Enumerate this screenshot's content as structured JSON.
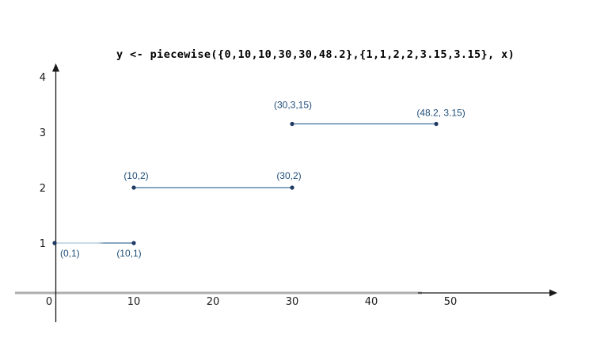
{
  "title": "y <- piecewise({0,10,10,30,30,48.2},{1,1,2,2,3.15,3.15}, x)",
  "chart_data": {
    "type": "line",
    "title": "y <- piecewise({0,10,10,30,30,48.2},{1,1,2,2,3.15,3.15}, x)",
    "xlabel": "",
    "ylabel": "",
    "x_ticks": [
      0,
      10,
      20,
      30,
      40,
      50
    ],
    "y_ticks": [
      1,
      2,
      3,
      4
    ],
    "xlim": [
      0,
      63
    ],
    "ylim": [
      0,
      4.3
    ],
    "grid": false,
    "legend": "none",
    "segments": [
      {
        "name": "segment-1",
        "x": [
          0,
          10
        ],
        "y": [
          1,
          1
        ],
        "labels": [
          "(0,1)",
          "(10,1)"
        ]
      },
      {
        "name": "segment-2",
        "x": [
          10,
          30
        ],
        "y": [
          2,
          2
        ],
        "labels": [
          "(10,2)",
          "(30,2)"
        ]
      },
      {
        "name": "segment-3",
        "x": [
          30,
          48.2
        ],
        "y": [
          3.15,
          3.15
        ],
        "labels": [
          "(30,3,15)",
          "(48.2, 3.15)"
        ]
      }
    ],
    "colors": {
      "line": "#41719c",
      "line_faded": "#a9c3db",
      "point": "#1f3864",
      "label": "#1f4e79",
      "axis": "#1a1a1a",
      "axis_gray": "#adadad",
      "title": "#000000"
    }
  }
}
